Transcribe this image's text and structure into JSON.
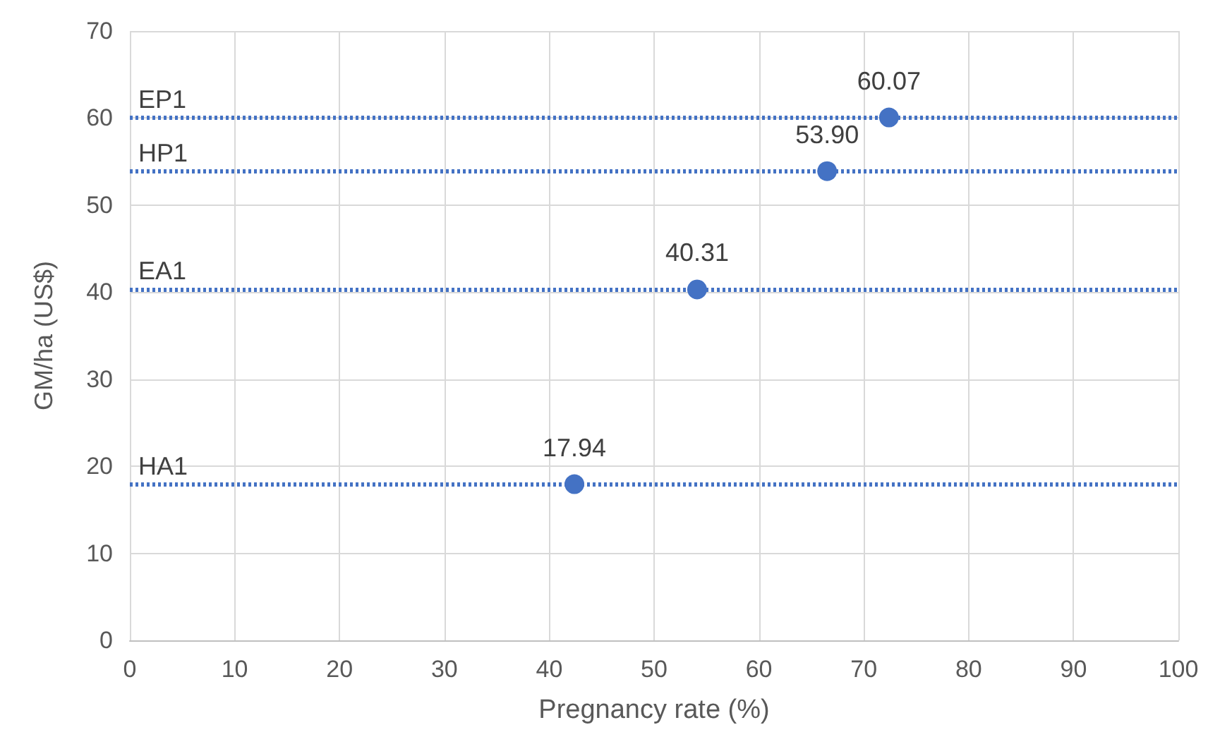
{
  "chart_data": {
    "type": "scatter",
    "xlabel": "Pregnancy rate (%)",
    "ylabel": "GM/ha (US$)",
    "x": [
      42.4,
      54.1,
      66.5,
      72.4
    ],
    "values": [
      17.94,
      40.31,
      53.9,
      60.07
    ],
    "value_labels": [
      "17.94",
      "40.31",
      "53.90",
      "60.07"
    ],
    "color": "#4472c4",
    "marker": "circle",
    "xlim": [
      0,
      100
    ],
    "xticks": [
      0,
      10,
      20,
      30,
      40,
      50,
      60,
      70,
      80,
      90,
      100
    ],
    "ylim": [
      0,
      70
    ],
    "yticks": [
      0,
      10,
      20,
      30,
      40,
      50,
      60,
      70
    ],
    "grid": true,
    "ref_lines": [
      {
        "axis": "y",
        "value": 60.07,
        "label": "EP1",
        "color": "#4472c4",
        "line_style": "dotted"
      },
      {
        "axis": "y",
        "value": 53.9,
        "label": "HP1",
        "color": "#4472c4",
        "line_style": "dotted"
      },
      {
        "axis": "y",
        "value": 40.31,
        "label": "EA1",
        "color": "#4472c4",
        "line_style": "dotted"
      },
      {
        "axis": "y",
        "value": 17.94,
        "label": "HA1",
        "color": "#4472c4",
        "line_style": "dotted"
      }
    ]
  }
}
